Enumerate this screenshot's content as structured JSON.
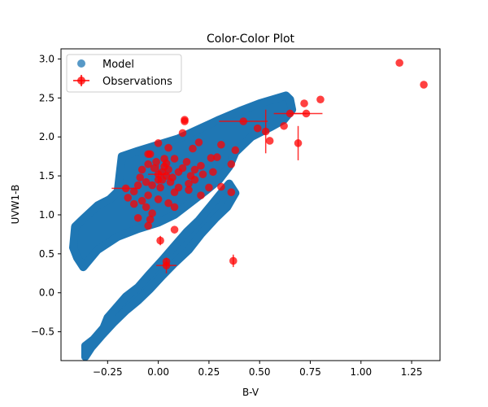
{
  "chart_data": {
    "type": "scatter",
    "title": "Color-Color Plot",
    "xlabel": "B-V",
    "ylabel": "UVW1-B",
    "xlim": [
      -0.48,
      1.39
    ],
    "ylim": [
      -0.87,
      3.13
    ],
    "xticks": [
      -0.25,
      0.0,
      0.25,
      0.5,
      0.75,
      1.0,
      1.25
    ],
    "xtick_labels": [
      "−0.25",
      "0.00",
      "0.25",
      "0.50",
      "0.75",
      "1.00",
      "1.25"
    ],
    "yticks": [
      -0.5,
      0.0,
      0.5,
      1.0,
      1.5,
      2.0,
      2.5,
      3.0
    ],
    "ytick_labels": [
      "−0.5",
      "0.0",
      "0.5",
      "1.0",
      "1.5",
      "2.0",
      "2.5",
      "3.0"
    ],
    "grid": false,
    "legend_position": "upper left",
    "legend": [
      {
        "label": "Model",
        "marker": "circle",
        "color": "#1f77b4"
      },
      {
        "label": "Observations",
        "marker": "circle-errorbar",
        "color": "#ff0000"
      }
    ],
    "series": [
      {
        "name": "Model",
        "color": "#1f77b4",
        "style": "dense-scatter",
        "bands": [
          {
            "comment_free_outline": true,
            "polygon": [
              [
                -0.42,
                0.58
              ],
              [
                -0.41,
                0.85
              ],
              [
                -0.37,
                0.95
              ],
              [
                -0.3,
                1.12
              ],
              [
                -0.24,
                1.2
              ],
              [
                -0.2,
                1.3
              ],
              [
                -0.19,
                1.53
              ],
              [
                -0.18,
                1.75
              ],
              [
                -0.1,
                1.82
              ],
              [
                0.0,
                1.9
              ],
              [
                0.1,
                1.98
              ],
              [
                0.2,
                2.1
              ],
              [
                0.3,
                2.22
              ],
              [
                0.4,
                2.33
              ],
              [
                0.5,
                2.43
              ],
              [
                0.63,
                2.53
              ],
              [
                0.65,
                2.48
              ],
              [
                0.66,
                2.35
              ],
              [
                0.62,
                2.22
              ],
              [
                0.55,
                2.12
              ],
              [
                0.46,
                2.0
              ],
              [
                0.38,
                1.8
              ],
              [
                0.35,
                1.62
              ],
              [
                0.3,
                1.45
              ],
              [
                0.23,
                1.3
              ],
              [
                0.18,
                1.2
              ],
              [
                0.08,
                1.0
              ],
              [
                0.0,
                0.9
              ],
              [
                -0.1,
                0.82
              ],
              [
                -0.2,
                0.72
              ],
              [
                -0.3,
                0.55
              ],
              [
                -0.37,
                0.33
              ],
              [
                -0.4,
                0.45
              ]
            ]
          },
          {
            "polygon": [
              [
                -0.36,
                -0.82
              ],
              [
                -0.36,
                -0.68
              ],
              [
                -0.32,
                -0.6
              ],
              [
                -0.27,
                -0.45
              ],
              [
                -0.25,
                -0.32
              ],
              [
                -0.21,
                -0.2
              ],
              [
                -0.16,
                -0.05
              ],
              [
                -0.1,
                0.07
              ],
              [
                -0.05,
                0.22
              ],
              [
                0.02,
                0.42
              ],
              [
                0.08,
                0.6
              ],
              [
                0.14,
                0.78
              ],
              [
                0.2,
                0.93
              ],
              [
                0.26,
                1.12
              ],
              [
                0.31,
                1.28
              ],
              [
                0.35,
                1.4
              ],
              [
                0.38,
                1.28
              ],
              [
                0.34,
                1.1
              ],
              [
                0.28,
                0.95
              ],
              [
                0.21,
                0.75
              ],
              [
                0.15,
                0.55
              ],
              [
                0.08,
                0.38
              ],
              [
                0.02,
                0.22
              ],
              [
                -0.04,
                0.05
              ],
              [
                -0.1,
                -0.1
              ],
              [
                -0.16,
                -0.23
              ],
              [
                -0.22,
                -0.38
              ],
              [
                -0.28,
                -0.55
              ],
              [
                -0.33,
                -0.7
              ]
            ]
          }
        ]
      },
      {
        "name": "Observations",
        "color": "#ff0000",
        "points": [
          {
            "x": 1.19,
            "y": 2.95
          },
          {
            "x": 1.31,
            "y": 2.67
          },
          {
            "x": 0.8,
            "y": 2.48
          },
          {
            "x": 0.72,
            "y": 2.43
          },
          {
            "x": 0.73,
            "y": 2.3,
            "xerr": 0.08
          },
          {
            "x": 0.65,
            "y": 2.3,
            "xerr": 0.08
          },
          {
            "x": 0.62,
            "y": 2.14
          },
          {
            "x": 0.53,
            "y": 2.07,
            "yerr": 0.28
          },
          {
            "x": 0.49,
            "y": 2.11
          },
          {
            "x": 0.42,
            "y": 2.2,
            "xerr": 0.12
          },
          {
            "x": 0.69,
            "y": 1.92,
            "yerr": 0.22
          },
          {
            "x": 0.55,
            "y": 1.95
          },
          {
            "x": 0.38,
            "y": 1.83
          },
          {
            "x": 0.31,
            "y": 1.9
          },
          {
            "x": 0.29,
            "y": 1.74
          },
          {
            "x": 0.36,
            "y": 1.65
          },
          {
            "x": 0.27,
            "y": 1.55
          },
          {
            "x": 0.31,
            "y": 1.36
          },
          {
            "x": 0.36,
            "y": 1.29
          },
          {
            "x": 0.13,
            "y": 2.22
          },
          {
            "x": 0.13,
            "y": 2.2
          },
          {
            "x": 0.12,
            "y": 2.05
          },
          {
            "x": 0.17,
            "y": 1.85
          },
          {
            "x": 0.2,
            "y": 1.93
          },
          {
            "x": 0.26,
            "y": 1.73
          },
          {
            "x": 0.21,
            "y": 1.63
          },
          {
            "x": 0.22,
            "y": 1.52
          },
          {
            "x": 0.18,
            "y": 1.45
          },
          {
            "x": 0.15,
            "y": 1.4
          },
          {
            "x": 0.1,
            "y": 1.35
          },
          {
            "x": 0.08,
            "y": 1.29
          },
          {
            "x": 0.15,
            "y": 1.32
          },
          {
            "x": 0.21,
            "y": 1.25
          },
          {
            "x": 0.08,
            "y": 1.72
          },
          {
            "x": 0.05,
            "y": 1.86
          },
          {
            "x": 0.0,
            "y": 1.92
          },
          {
            "x": -0.05,
            "y": 1.78
          },
          {
            "x": 0.03,
            "y": 1.72
          },
          {
            "x": -0.02,
            "y": 1.6
          },
          {
            "x": 0.02,
            "y": 1.55
          },
          {
            "x": 0.04,
            "y": 1.5
          },
          {
            "x": 0.0,
            "y": 1.45
          },
          {
            "x": 0.06,
            "y": 1.42
          },
          {
            "x": -0.03,
            "y": 1.38
          },
          {
            "x": 0.01,
            "y": 1.35
          },
          {
            "x": 0.03,
            "y": 1.62
          },
          {
            "x": -0.01,
            "y": 1.68
          },
          {
            "x": 0.05,
            "y": 1.58
          },
          {
            "x": 0.07,
            "y": 1.48
          },
          {
            "x": 0.04,
            "y": 1.66
          },
          {
            "x": 0.02,
            "y": 1.45
          },
          {
            "x": 0.0,
            "y": 1.52,
            "xerr": 0.05,
            "yerr": 0.12
          },
          {
            "x": -0.06,
            "y": 1.42
          },
          {
            "x": -0.09,
            "y": 1.48
          },
          {
            "x": -0.1,
            "y": 1.38
          },
          {
            "x": -0.12,
            "y": 1.3
          },
          {
            "x": -0.05,
            "y": 1.25
          },
          {
            "x": 0.0,
            "y": 1.2
          },
          {
            "x": 0.05,
            "y": 1.15
          },
          {
            "x": 0.08,
            "y": 1.1
          },
          {
            "x": -0.06,
            "y": 1.1
          },
          {
            "x": -0.08,
            "y": 1.18
          },
          {
            "x": -0.03,
            "y": 1.02
          },
          {
            "x": -0.04,
            "y": 0.94
          },
          {
            "x": -0.05,
            "y": 0.86
          },
          {
            "x": -0.1,
            "y": 0.96
          },
          {
            "x": -0.12,
            "y": 1.14
          },
          {
            "x": -0.15,
            "y": 1.22
          },
          {
            "x": -0.16,
            "y": 1.34,
            "xerr": 0.07
          },
          {
            "x": -0.08,
            "y": 1.58
          },
          {
            "x": -0.05,
            "y": 1.65
          },
          {
            "x": -0.04,
            "y": 1.78
          },
          {
            "x": 0.1,
            "y": 1.55
          },
          {
            "x": 0.12,
            "y": 1.6
          },
          {
            "x": 0.14,
            "y": 1.68
          },
          {
            "x": 0.16,
            "y": 1.5
          },
          {
            "x": 0.18,
            "y": 1.58
          },
          {
            "x": 0.25,
            "y": 1.35
          },
          {
            "x": 0.08,
            "y": 0.81
          },
          {
            "x": 0.01,
            "y": 0.67,
            "yerr": 0.06
          },
          {
            "x": 0.04,
            "y": 0.35,
            "xerr": 0.05,
            "yerr": 0.1
          },
          {
            "x": 0.04,
            "y": 0.4
          },
          {
            "x": 0.37,
            "y": 0.41,
            "yerr": 0.08
          }
        ]
      }
    ]
  }
}
